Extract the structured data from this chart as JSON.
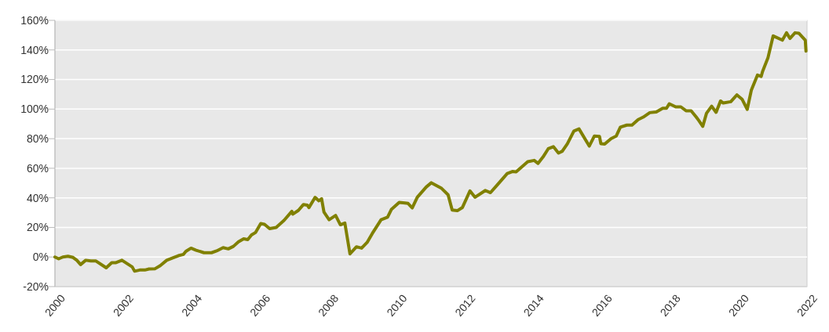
{
  "chart_data": {
    "type": "line",
    "xlim": [
      2000,
      2022
    ],
    "xticks": [
      2000,
      2002,
      2004,
      2006,
      2008,
      2010,
      2012,
      2014,
      2016,
      2018,
      2020,
      2022
    ],
    "ylim": [
      -20,
      160
    ],
    "yticks": [
      {
        "value": -20,
        "label": "-20%"
      },
      {
        "value": 0,
        "label": "0%"
      },
      {
        "value": 20,
        "label": "20%"
      },
      {
        "value": 40,
        "label": "40%"
      },
      {
        "value": 60,
        "label": "60%"
      },
      {
        "value": 80,
        "label": "80%"
      },
      {
        "value": 100,
        "label": "100%"
      },
      {
        "value": 120,
        "label": "120%"
      },
      {
        "value": 140,
        "label": "140%"
      },
      {
        "value": 160,
        "label": "160%"
      }
    ],
    "grid": "y",
    "marker": "none",
    "line_style": "solid",
    "series": [
      {
        "color": "#808000",
        "x": [
          2000.0,
          2000.11,
          2000.23,
          2000.38,
          2000.53,
          2000.64,
          2000.75,
          2000.9,
          2001.05,
          2001.2,
          2001.5,
          2001.66,
          2001.77,
          2001.96,
          2002.26,
          2002.33,
          2002.48,
          2002.63,
          2002.75,
          2002.93,
          2003.08,
          2003.27,
          2003.46,
          2003.61,
          2003.76,
          2003.83,
          2003.98,
          2004.13,
          2004.36,
          2004.58,
          2004.73,
          2004.92,
          2005.07,
          2005.22,
          2005.37,
          2005.52,
          2005.64,
          2005.75,
          2005.87,
          2006.02,
          2006.13,
          2006.28,
          2006.47,
          2006.7,
          2006.93,
          2006.96,
          2007.12,
          2007.27,
          2007.38,
          2007.43,
          2007.61,
          2007.72,
          2007.8,
          2007.87,
          2008.02,
          2008.21,
          2008.35,
          2008.48,
          2008.63,
          2008.82,
          2008.97,
          2009.13,
          2009.28,
          2009.54,
          2009.73,
          2009.84,
          2010.07,
          2010.24,
          2010.33,
          2010.45,
          2010.6,
          2010.86,
          2011.01,
          2011.31,
          2011.5,
          2011.62,
          2011.77,
          2011.92,
          2012.14,
          2012.29,
          2012.59,
          2012.74,
          2012.93,
          2013.23,
          2013.38,
          2013.49,
          2013.83,
          2014.02,
          2014.13,
          2014.28,
          2014.43,
          2014.58,
          2014.73,
          2014.84,
          2014.99,
          2015.18,
          2015.33,
          2015.63,
          2015.78,
          2015.93,
          2015.97,
          2016.08,
          2016.27,
          2016.42,
          2016.54,
          2016.73,
          2016.88,
          2017.06,
          2017.21,
          2017.4,
          2017.59,
          2017.78,
          2017.89,
          2017.97,
          2018.16,
          2018.31,
          2018.46,
          2018.61,
          2018.76,
          2018.83,
          2018.95,
          2019.06,
          2019.21,
          2019.34,
          2019.47,
          2019.55,
          2019.77,
          2019.95,
          2020.1,
          2020.25,
          2020.37,
          2020.55,
          2020.66,
          2020.7,
          2020.86,
          2021.01,
          2021.28,
          2021.4,
          2021.5,
          2021.65,
          2021.76,
          2021.95,
          2021.97
        ],
        "values": [
          0,
          -1.2,
          0,
          0.5,
          -0.3,
          -2.2,
          -5.1,
          -2.2,
          -2.7,
          -2.7,
          -7.3,
          -3.9,
          -3.9,
          -2.2,
          -6.7,
          -9.6,
          -8.8,
          -8.8,
          -8.1,
          -7.9,
          -5.8,
          -2.2,
          -0.5,
          0.9,
          1.8,
          3.8,
          6.0,
          4.6,
          2.9,
          2.9,
          4.1,
          6.3,
          5.5,
          7.2,
          10.3,
          12.3,
          11.8,
          14.9,
          16.6,
          22.6,
          22.1,
          19.2,
          20.0,
          24.7,
          30.9,
          29.0,
          31.5,
          35.5,
          35.1,
          33.4,
          40.3,
          38.0,
          39.4,
          30.3,
          25.2,
          28.1,
          21.8,
          23.0,
          2.1,
          6.9,
          6.0,
          9.8,
          15.8,
          25.2,
          26.9,
          32.1,
          36.9,
          36.5,
          36.2,
          33.2,
          40.4,
          47.3,
          50.2,
          46.4,
          42.1,
          31.8,
          31.3,
          33.5,
          44.7,
          40.4,
          45.0,
          43.5,
          48.5,
          56.4,
          57.8,
          57.6,
          64.4,
          65.3,
          63.3,
          67.7,
          73.2,
          74.6,
          70.3,
          71.5,
          76.6,
          85.2,
          86.6,
          75.0,
          81.8,
          81.5,
          76.6,
          76.3,
          80.1,
          81.8,
          87.8,
          89.2,
          89.2,
          92.9,
          94.6,
          97.6,
          98.1,
          100.6,
          100.6,
          103.6,
          101.5,
          101.5,
          98.9,
          98.9,
          94.6,
          92.4,
          88.3,
          97.2,
          102.0,
          97.8,
          105.5,
          104.1,
          105.0,
          109.6,
          106.7,
          99.8,
          112.7,
          123.0,
          122.1,
          125.5,
          134.9,
          149.5,
          146.6,
          151.6,
          147.8,
          151.6,
          151.3,
          146.6,
          139.2
        ]
      }
    ]
  }
}
